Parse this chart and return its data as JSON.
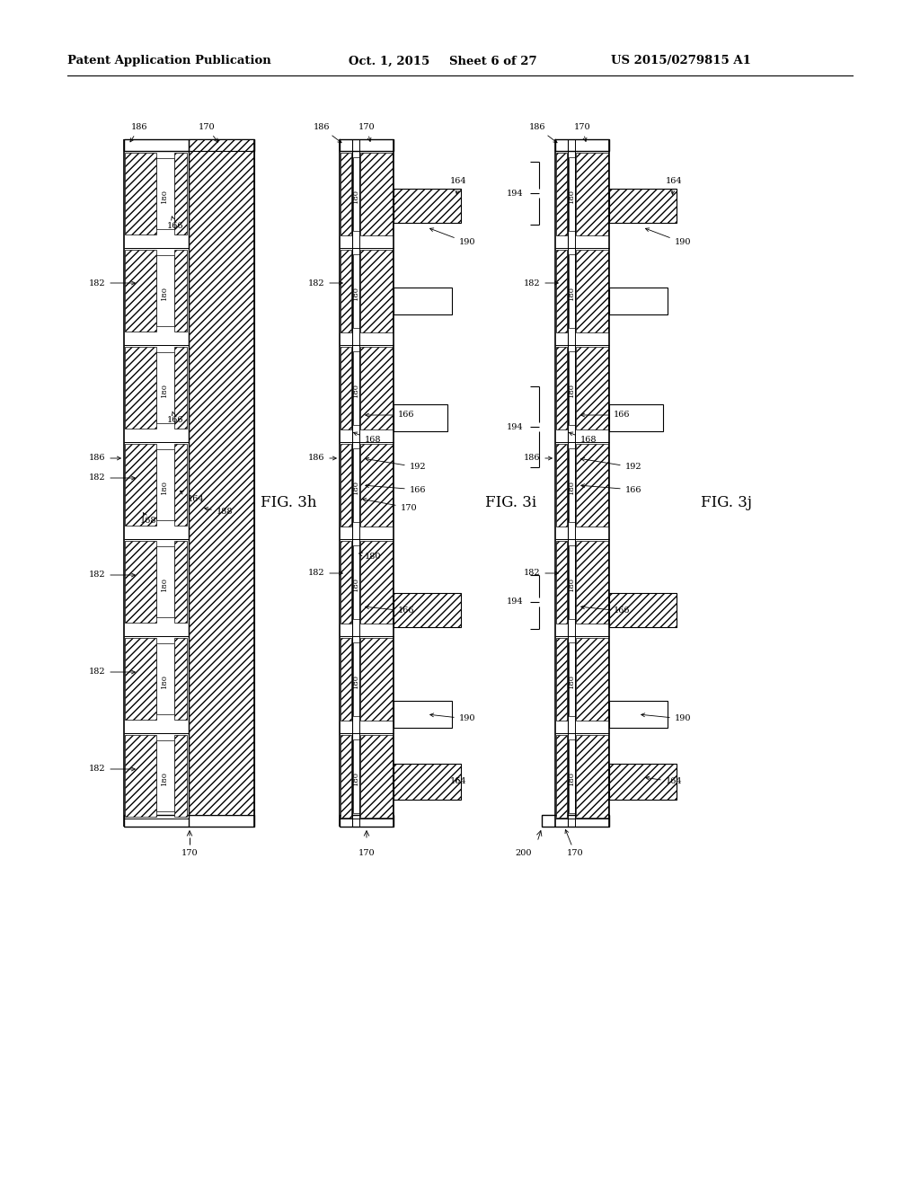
{
  "header_left": "Patent Application Publication",
  "header_mid": "Oct. 1, 2015   Sheet 6 of 27",
  "header_right": "US 2015/0279815 A1",
  "bg_color": "#ffffff",
  "line_color": "#000000"
}
